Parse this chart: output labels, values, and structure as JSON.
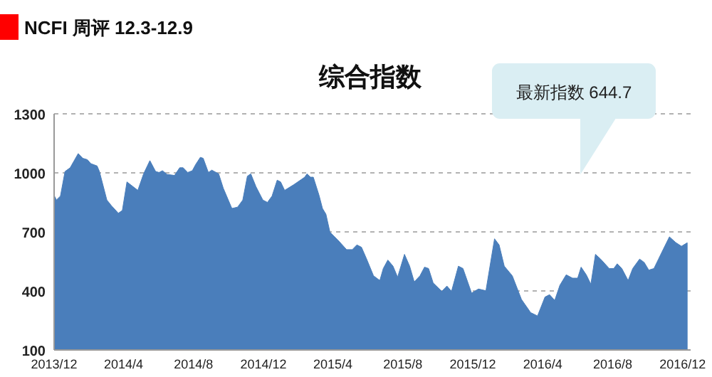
{
  "chart_data": {
    "type": "area",
    "title": "综合指数",
    "annotations": [
      "NCFI 周评 12.3-12.9",
      "最新指数 644.7"
    ],
    "x": [
      "2013-12-01",
      "2013-12-05",
      "2013-12-12",
      "2013-12-20",
      "2013-12-29",
      "2014-01-12",
      "2014-01-20",
      "2014-01-28",
      "2014-02-03",
      "2014-02-14",
      "2014-02-18",
      "2014-03-03",
      "2014-03-11",
      "2014-03-23",
      "2014-03-30",
      "2014-04-07",
      "2014-04-26",
      "2014-05-06",
      "2014-05-17",
      "2014-05-27",
      "2014-06-02",
      "2014-06-08",
      "2014-06-16",
      "2014-06-29",
      "2014-07-08",
      "2014-07-14",
      "2014-07-22",
      "2014-07-30",
      "2014-08-05",
      "2014-08-13",
      "2014-08-18",
      "2014-08-27",
      "2014-09-02",
      "2014-09-14",
      "2014-09-22",
      "2014-10-07",
      "2014-10-17",
      "2014-10-26",
      "2014-11-03",
      "2014-11-09",
      "2014-11-18",
      "2014-11-30",
      "2014-12-08",
      "2014-12-16",
      "2014-12-25",
      "2014-12-31",
      "2015-01-07",
      "2015-01-23",
      "2015-02-11",
      "2015-02-15",
      "2015-02-21",
      "2015-02-26",
      "2015-03-08",
      "2015-03-14",
      "2015-03-20",
      "2015-03-27",
      "2015-04-10",
      "2015-04-25",
      "2015-05-05",
      "2015-05-13",
      "2015-05-21",
      "2015-05-30",
      "2015-06-11",
      "2015-06-22",
      "2015-06-28",
      "2015-07-06",
      "2015-07-15",
      "2015-07-23",
      "2015-08-04",
      "2015-08-13",
      "2015-08-21",
      "2015-08-31",
      "2015-09-08",
      "2015-09-15",
      "2015-09-23",
      "2015-10-08",
      "2015-10-17",
      "2015-10-25",
      "2015-11-06",
      "2015-11-14",
      "2015-11-29",
      "2015-12-11",
      "2015-12-24",
      "2016-01-08",
      "2016-01-16",
      "2016-01-25",
      "2016-02-08",
      "2016-02-24",
      "2016-03-11",
      "2016-03-23",
      "2016-04-05",
      "2016-04-13",
      "2016-04-22",
      "2016-05-01",
      "2016-05-12",
      "2016-05-23",
      "2016-06-01",
      "2016-06-07",
      "2016-06-16",
      "2016-06-24",
      "2016-07-02",
      "2016-07-11",
      "2016-07-26",
      "2016-08-03",
      "2016-08-09",
      "2016-08-17",
      "2016-08-28",
      "2016-09-05",
      "2016-09-17",
      "2016-09-25",
      "2016-10-03",
      "2016-10-12",
      "2016-10-20",
      "2016-10-28",
      "2016-11-08",
      "2016-11-19",
      "2016-11-29",
      "2016-12-09"
    ],
    "series": [
      {
        "color": "#4a7ebb",
        "values": [
          886,
          862,
          882,
          1007,
          1026,
          1098,
          1074,
          1067,
          1047,
          1035,
          1007,
          862,
          833,
          795,
          809,
          954,
          911,
          995,
          1062,
          1007,
          1002,
          1011,
          992,
          987,
          1026,
          1026,
          1002,
          1011,
          1043,
          1079,
          1074,
          1002,
          1014,
          995,
          922,
          819,
          826,
          862,
          983,
          995,
          930,
          862,
          850,
          882,
          963,
          954,
          911,
          940,
          978,
          995,
          978,
          978,
          886,
          819,
          790,
          699,
          658,
          610,
          610,
          634,
          622,
          562,
          477,
          453,
          514,
          557,
          526,
          470,
          586,
          526,
          446,
          477,
          521,
          514,
          441,
          398,
          425,
          398,
          526,
          514,
          389,
          410,
          401,
          665,
          634,
          526,
          477,
          357,
          290,
          273,
          369,
          381,
          352,
          429,
          482,
          465,
          465,
          521,
          482,
          434,
          586,
          562,
          514,
          514,
          538,
          514,
          453,
          514,
          562,
          545,
          506,
          514,
          562,
          610,
          675,
          646,
          627,
          644.7
        ]
      }
    ],
    "xlim": [
      "2013-12-01",
      "2016-12-15"
    ],
    "xticks": [
      {
        "value": "2013-12-01",
        "label": "2013/12"
      },
      {
        "value": "2014-04-01",
        "label": "2014/4"
      },
      {
        "value": "2014-08-01",
        "label": "2014/8"
      },
      {
        "value": "2014-12-01",
        "label": "2014/12"
      },
      {
        "value": "2015-04-01",
        "label": "2015/4"
      },
      {
        "value": "2015-08-01",
        "label": "2015/8"
      },
      {
        "value": "2015-12-01",
        "label": "2015/12"
      },
      {
        "value": "2016-04-01",
        "label": "2016/4"
      },
      {
        "value": "2016-08-01",
        "label": "2016/8"
      },
      {
        "value": "2016-12-01",
        "label": "2016/12"
      }
    ],
    "ylim": [
      100,
      1300
    ],
    "yticks": [
      100,
      400,
      700,
      1000,
      1300
    ],
    "grid": "y"
  }
}
